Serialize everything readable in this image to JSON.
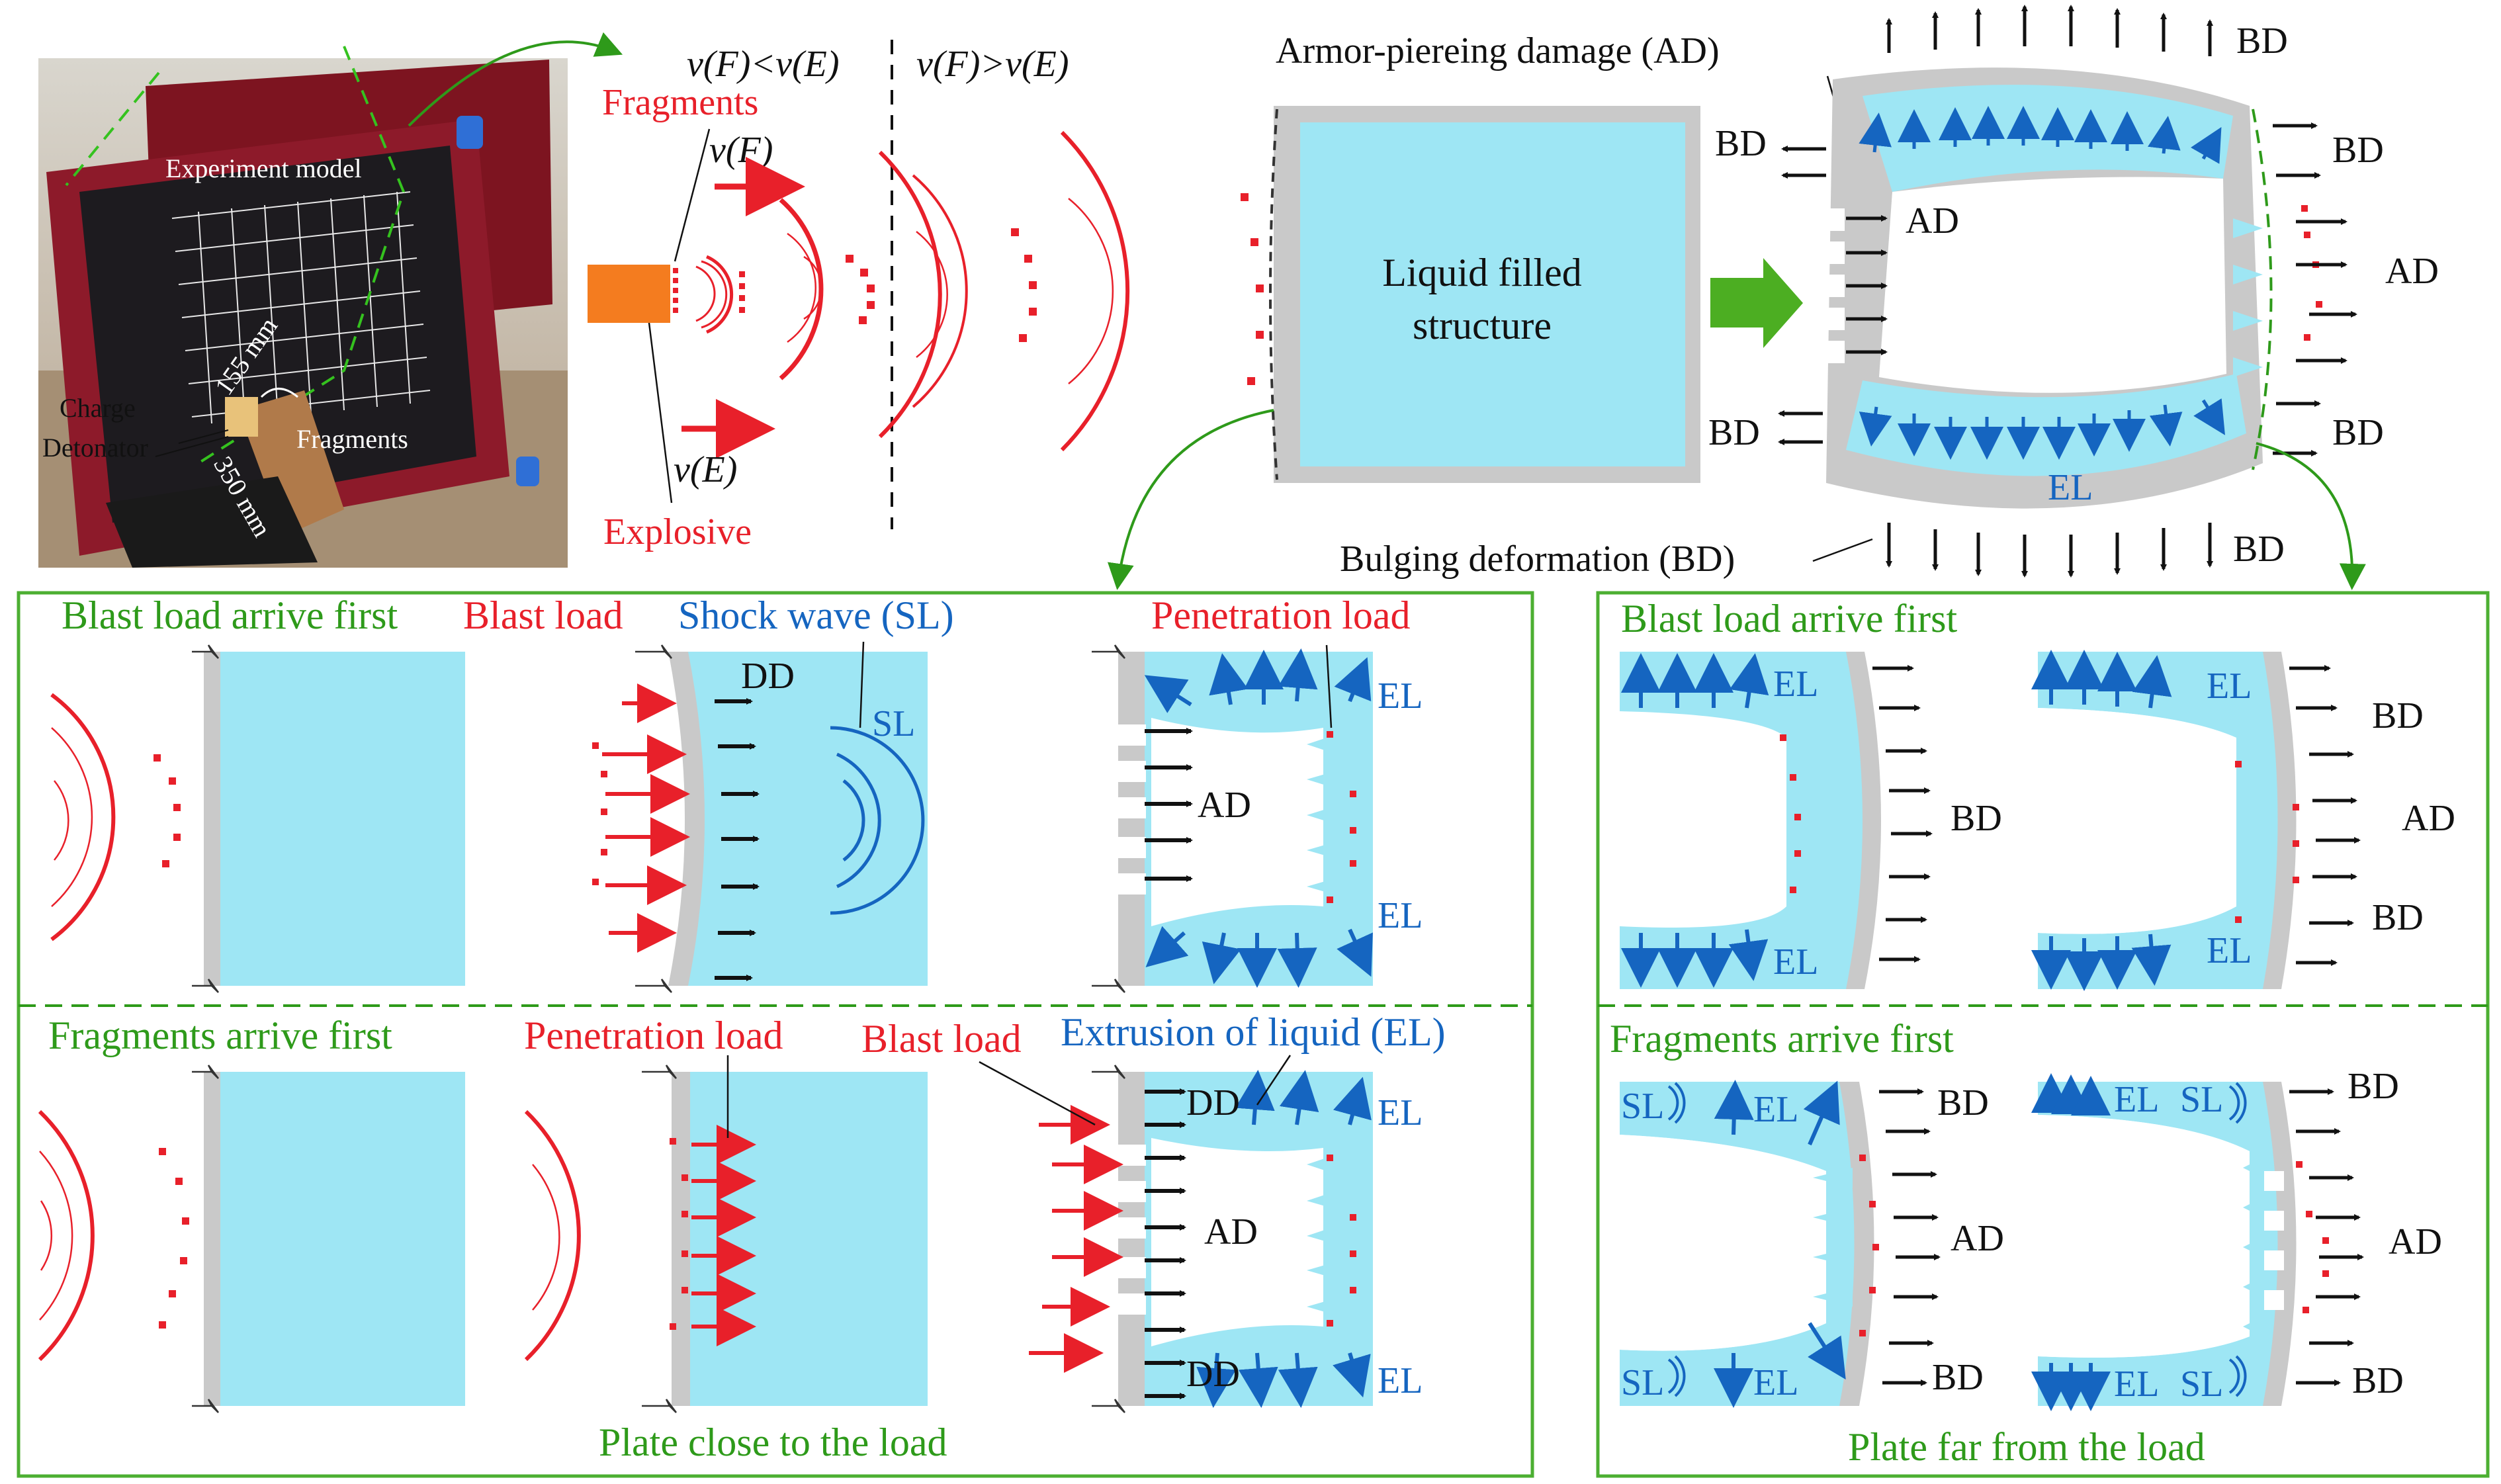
{
  "colors": {
    "liquid": "#9ee6f4",
    "plate": "#c9c9c9",
    "red": "#e8202a",
    "blue": "#1565c0",
    "green": "#2e9a1a",
    "box": "#4caf32",
    "orange": "#f47c1f",
    "arrowGreen": "#4cae22"
  },
  "photo": {
    "experiment_model": "Experiment model",
    "charge": "Charge",
    "detonator": "Detonator",
    "fragments": "Fragments",
    "dim1": "155 mm",
    "dim2": "350 mm"
  },
  "concept": {
    "v_less": "v(F)<v(E)",
    "v_greater": "v(F)>v(E)",
    "fragments": "Fragments",
    "vf": "v(F)",
    "ve": "v(E)",
    "explosive": "Explosive",
    "liquid_line1": "Liquid filled",
    "liquid_line2": "structure",
    "ad_label": "Armor-piereing damage (AD)",
    "bd_label": "Bulging deformation (BD)",
    "bd": "BD",
    "ad": "AD",
    "el": "EL"
  },
  "close_panel": {
    "title": "Plate close to the load",
    "blast_first": "Blast load arrive first",
    "frag_first": "Fragments arrive first",
    "blast_load": "Blast load",
    "shock_wave": "Shock wave (SL)",
    "penetration_load": "Penetration load",
    "extrusion": "Extrusion of liquid (EL)",
    "dd": "DD",
    "sl": "SL",
    "ad": "AD",
    "el": "EL"
  },
  "far_panel": {
    "title": "Plate far from the load",
    "blast_first": "Blast load arrive first",
    "frag_first": "Fragments arrive first",
    "el": "EL",
    "bd": "BD",
    "ad": "AD",
    "sl": "SL"
  }
}
